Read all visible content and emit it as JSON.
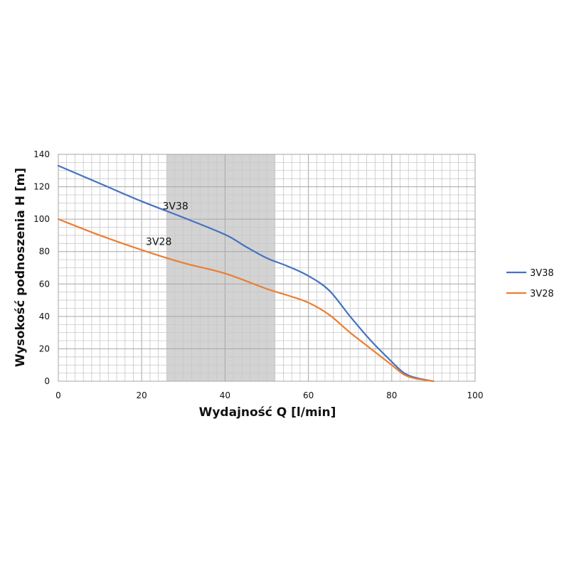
{
  "chart_data": {
    "type": "line",
    "xlabel": "Wydajność Q [l/min]",
    "ylabel": "Wysokość podnoszenia H [m]",
    "xlim": [
      0,
      100
    ],
    "ylim": [
      0,
      140
    ],
    "x_ticks": [
      0,
      20,
      40,
      60,
      80,
      100
    ],
    "y_ticks": [
      0,
      20,
      40,
      60,
      80,
      100,
      120,
      140
    ],
    "x_minor_step": 2,
    "y_minor_step": 5,
    "grid": true,
    "highlight_band": {
      "x": [
        26,
        52
      ],
      "color": "#d3d3d3"
    },
    "legend_position": "right",
    "series": [
      {
        "name": "3V38",
        "color": "#4472c4",
        "label_at": {
          "x": 25,
          "y": 106
        },
        "points": [
          [
            0,
            133
          ],
          [
            10,
            122
          ],
          [
            20,
            111
          ],
          [
            30,
            101
          ],
          [
            40,
            90.5
          ],
          [
            45,
            83
          ],
          [
            50,
            76
          ],
          [
            55,
            71
          ],
          [
            60,
            65
          ],
          [
            65,
            56
          ],
          [
            70,
            40
          ],
          [
            75,
            25
          ],
          [
            80,
            12
          ],
          [
            83,
            5
          ],
          [
            86,
            2
          ],
          [
            90,
            0
          ]
        ]
      },
      {
        "name": "3V28",
        "color": "#ed7d31",
        "label_at": {
          "x": 21,
          "y": 84
        },
        "points": [
          [
            0,
            100
          ],
          [
            10,
            90
          ],
          [
            20,
            81
          ],
          [
            30,
            73
          ],
          [
            40,
            66.5
          ],
          [
            50,
            57
          ],
          [
            55,
            53
          ],
          [
            60,
            48.5
          ],
          [
            65,
            41
          ],
          [
            70,
            30
          ],
          [
            75,
            20
          ],
          [
            80,
            10
          ],
          [
            83,
            4
          ],
          [
            86,
            1.5
          ],
          [
            90,
            0
          ]
        ]
      }
    ]
  }
}
